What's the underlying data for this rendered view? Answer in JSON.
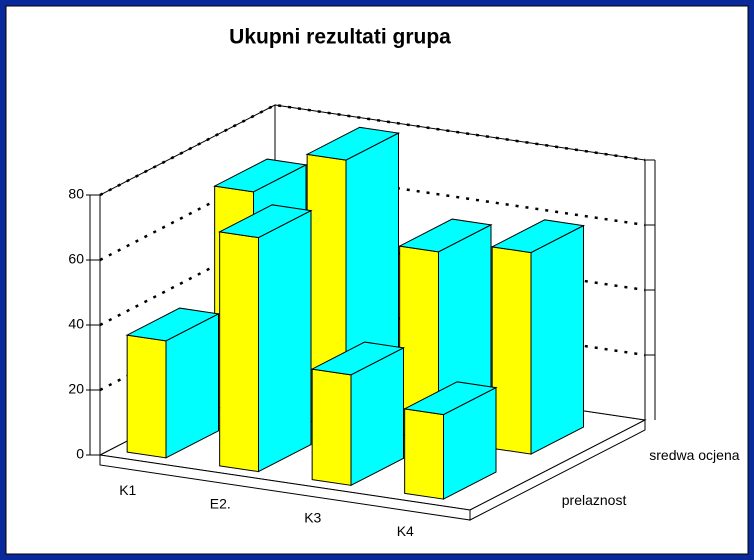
{
  "chart_data": {
    "type": "bar3d",
    "title": "Ukupni rezultati grupa",
    "categories": [
      "K1",
      "E2.",
      "K3",
      "K4"
    ],
    "series": [
      {
        "name": "prelaznost",
        "color": "#ffff00",
        "values": [
          36,
          72,
          34,
          26
        ]
      },
      {
        "name": "sredwa ocjena",
        "color": "#00ffff",
        "values": [
          68,
          82,
          58,
          62
        ]
      }
    ],
    "ylim": [
      0,
      80
    ],
    "yticks": [
      0,
      20,
      40,
      60,
      80
    ],
    "grid": true
  }
}
